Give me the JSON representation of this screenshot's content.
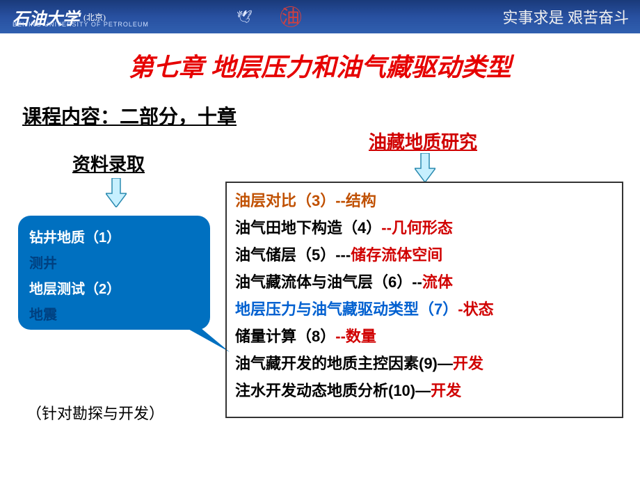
{
  "header": {
    "logo_main": "石油大学",
    "logo_sub": "(北京)",
    "logo_en": "BEIJING UNIVERSITY OF PETROLEUM",
    "motto": "实事求是  艰苦奋斗"
  },
  "title": "第七章  地层压力和油气藏驱动类型",
  "subtitle": "课程内容：二部分，十章",
  "left_label": "资料录取",
  "right_label": "油藏地质研究",
  "blue_box": {
    "l1": "钻井地质（1）",
    "l2": "测井",
    "l3": "地层测试（2）",
    "l4": "地震"
  },
  "right_box": [
    {
      "segments": [
        {
          "cls": "orange",
          "t": "油层对比（3）--结构"
        }
      ]
    },
    {
      "segments": [
        {
          "cls": "black",
          "t": "油气田地下构造（4）"
        },
        {
          "cls": "red",
          "t": "--几何形态"
        }
      ]
    },
    {
      "segments": [
        {
          "cls": "black",
          "t": "油气储层（5）---"
        },
        {
          "cls": "red",
          "t": "储存流体空间"
        }
      ]
    },
    {
      "segments": [
        {
          "cls": "black",
          "t": "油气藏流体与油气层（6）--"
        },
        {
          "cls": "red",
          "t": "流体"
        }
      ]
    },
    {
      "segments": [
        {
          "cls": "blue",
          "t": "地层压力与油气藏驱动类型（7）"
        },
        {
          "cls": "red",
          "t": "-状态"
        }
      ]
    },
    {
      "segments": [
        {
          "cls": "black",
          "t": "储量计算（8）"
        },
        {
          "cls": "red",
          "t": "--数量"
        }
      ]
    },
    {
      "segments": [
        {
          "cls": "black",
          "t": "油气藏开发的地质主控因素(9)—"
        },
        {
          "cls": "red",
          "t": "开发"
        }
      ]
    },
    {
      "segments": [
        {
          "cls": "black",
          "t": "注水开发动态地质分析(10)—"
        },
        {
          "cls": "red",
          "t": "开发"
        }
      ]
    }
  ],
  "note_left": "（针对勘探与开发）",
  "colors": {
    "header_bg_top": "#1a3a7a",
    "header_bg_bot": "#3060b0",
    "title_red": "#e60000",
    "box_blue": "#0070c0",
    "arrow_fill": "#c7f0ff",
    "arrow_stroke": "#2a8ab0"
  }
}
